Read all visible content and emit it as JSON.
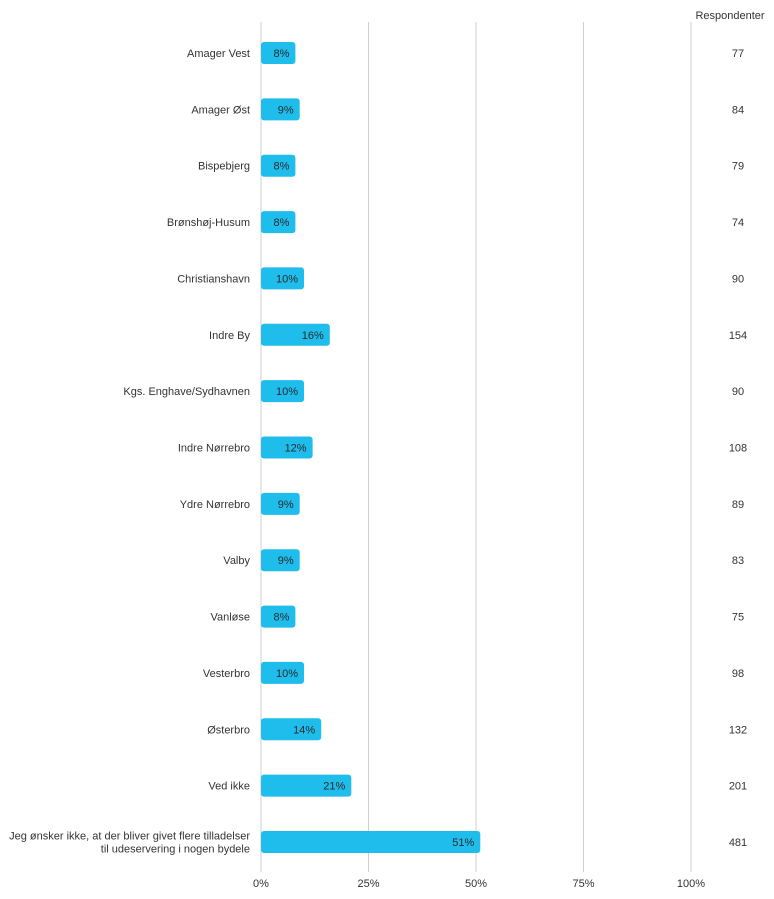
{
  "respondents_header": "Respondenter",
  "colors": {
    "bar": "#1fbdec",
    "bar_label": "#2a2a2a",
    "category_label": "#333333",
    "grid": "#cfcfcf",
    "tick_label": "#333333",
    "respondent_text": "#333333"
  },
  "chart_data": {
    "type": "bar",
    "orientation": "horizontal",
    "categories": [
      "Amager Vest",
      "Amager Øst",
      "Bispebjerg",
      "Brønshøj-Husum",
      "Christianshavn",
      "Indre By",
      "Kgs. Enghave/Sydhavnen",
      "Indre Nørrebro",
      "Ydre Nørrebro",
      "Valby",
      "Vanløse",
      "Vesterbro",
      "Østerbro",
      "Ved ikke",
      "Jeg ønsker ikke, at der bliver givet flere tilladelser til udeservering i nogen bydele"
    ],
    "category_lines": [
      [
        "Amager Vest"
      ],
      [
        "Amager Øst"
      ],
      [
        "Bispebjerg"
      ],
      [
        "Brønshøj-Husum"
      ],
      [
        "Christianshavn"
      ],
      [
        "Indre By"
      ],
      [
        "Kgs. Enghave/Sydhavnen"
      ],
      [
        "Indre Nørrebro"
      ],
      [
        "Ydre Nørrebro"
      ],
      [
        "Valby"
      ],
      [
        "Vanløse"
      ],
      [
        "Vesterbro"
      ],
      [
        "Østerbro"
      ],
      [
        "Ved ikke"
      ],
      [
        "Jeg ønsker ikke, at der bliver givet flere tilladelser",
        "til udeservering i nogen bydele"
      ]
    ],
    "values": [
      8,
      9,
      8,
      8,
      10,
      16,
      10,
      12,
      9,
      9,
      8,
      10,
      14,
      21,
      51
    ],
    "value_labels": [
      "8%",
      "9%",
      "8%",
      "8%",
      "10%",
      "16%",
      "10%",
      "12%",
      "9%",
      "9%",
      "8%",
      "10%",
      "14%",
      "21%",
      "51%"
    ],
    "respondents": [
      "77",
      "84",
      "79",
      "74",
      "90",
      "154",
      "90",
      "108",
      "89",
      "83",
      "75",
      "98",
      "132",
      "201",
      "481"
    ],
    "xlim": [
      0,
      100
    ],
    "xticks": [
      0,
      25,
      50,
      75,
      100
    ],
    "xtick_labels": [
      "0%",
      "25%",
      "50%",
      "75%",
      "100%"
    ],
    "grid": true,
    "title": "",
    "xlabel": "",
    "ylabel": ""
  }
}
